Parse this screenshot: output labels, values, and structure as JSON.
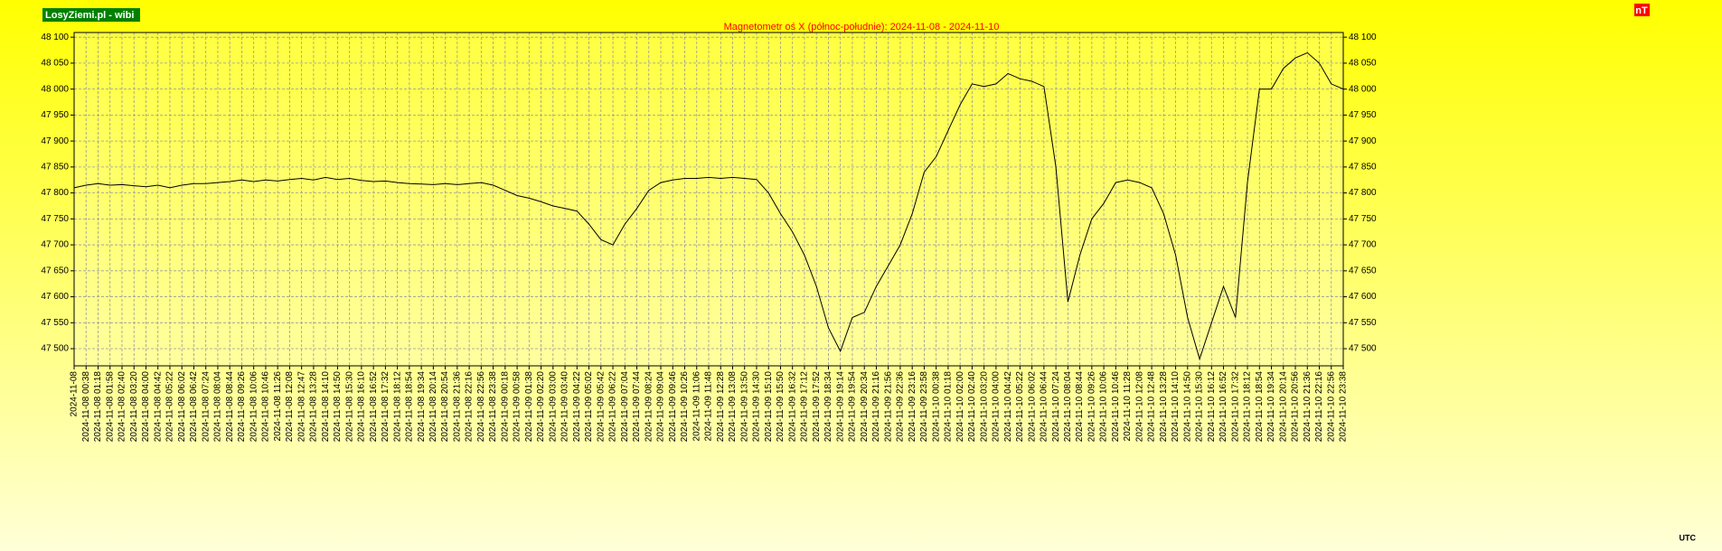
{
  "chart_data": {
    "type": "line",
    "title": "Magnetometr oś X (północ-południe): 2024-11-08 - 2024-11-10",
    "logo": "LosyZiemi.pl - wibi",
    "unit": "nT",
    "timezone": "UTC",
    "color": "#000000",
    "grid": true,
    "ylim": [
      47467,
      48109
    ],
    "yticks": [
      {
        "value": 47500,
        "label": "47 500"
      },
      {
        "value": 47550,
        "label": "47 550"
      },
      {
        "value": 47600,
        "label": "47 600"
      },
      {
        "value": 47650,
        "label": "47 650"
      },
      {
        "value": 47700,
        "label": "47 700"
      },
      {
        "value": 47750,
        "label": "47 750"
      },
      {
        "value": 47800,
        "label": "47 800"
      },
      {
        "value": 47850,
        "label": "47 850"
      },
      {
        "value": 47900,
        "label": "47 900"
      },
      {
        "value": 47950,
        "label": "47 950"
      },
      {
        "value": 48000,
        "label": "48 000"
      },
      {
        "value": 48050,
        "label": "48 050"
      },
      {
        "value": 48100,
        "label": "48 100"
      }
    ],
    "categories": [
      "2024-11-08",
      "2024-11-08 00:38",
      "2024-11-08 01:18",
      "2024-11-08 01:58",
      "2024-11-08 02:40",
      "2024-11-08 03:20",
      "2024-11-08 04:00",
      "2024-11-08 04:42",
      "2024-11-08 05:22",
      "2024-11-08 06:02",
      "2024-11-08 06:42",
      "2024-11-08 07:24",
      "2024-11-08 08:04",
      "2024-11-08 08:44",
      "2024-11-08 09:26",
      "2024-11-08 10:06",
      "2024-11-08 10:46",
      "2024-11-08 11:26",
      "2024-11-08 12:08",
      "2024-11-08 12:47",
      "2024-11-08 13:28",
      "2024-11-08 14:10",
      "2024-11-08 14:50",
      "2024-11-08 15:30",
      "2024-11-08 16:10",
      "2024-11-08 16:52",
      "2024-11-08 17:32",
      "2024-11-08 18:12",
      "2024-11-08 18:54",
      "2024-11-08 19:34",
      "2024-11-08 20:14",
      "2024-11-08 20:54",
      "2024-11-08 21:36",
      "2024-11-08 22:16",
      "2024-11-08 22:56",
      "2024-11-08 23:38",
      "2024-11-09 00:18",
      "2024-11-09 00:58",
      "2024-11-09 01:38",
      "2024-11-09 02:20",
      "2024-11-09 03:00",
      "2024-11-09 03:40",
      "2024-11-09 04:22",
      "2024-11-09 05:02",
      "2024-11-09 05:42",
      "2024-11-09 06:22",
      "2024-11-09 07:04",
      "2024-11-09 07:44",
      "2024-11-09 08:24",
      "2024-11-09 09:04",
      "2024-11-09 09:46",
      "2024-11-09 10:26",
      "2024-11-09 11:06",
      "2024-11-09 11:48",
      "2024-11-09 12:28",
      "2024-11-09 13:08",
      "2024-11-09 13:50",
      "2024-11-09 14:30",
      "2024-11-09 15:10",
      "2024-11-09 15:50",
      "2024-11-09 16:32",
      "2024-11-09 17:12",
      "2024-11-09 17:52",
      "2024-11-09 18:34",
      "2024-11-09 19:14",
      "2024-11-09 19:54",
      "2024-11-09 20:34",
      "2024-11-09 21:16",
      "2024-11-09 21:56",
      "2024-11-09 22:36",
      "2024-11-09 23:16",
      "2024-11-09 23:58",
      "2024-11-10 00:38",
      "2024-11-10 01:18",
      "2024-11-10 02:00",
      "2024-11-10 02:40",
      "2024-11-10 03:20",
      "2024-11-10 04:00",
      "2024-11-10 04:42",
      "2024-11-10 05:22",
      "2024-11-10 06:02",
      "2024-11-10 06:44",
      "2024-11-10 07:24",
      "2024-11-10 08:04",
      "2024-11-10 08:44",
      "2024-11-10 09:26",
      "2024-11-10 10:06",
      "2024-11-10 10:46",
      "2024-11-10 11:28",
      "2024-11-10 12:08",
      "2024-11-10 12:48",
      "2024-11-10 13:28",
      "2024-11-10 14:10",
      "2024-11-10 14:50",
      "2024-11-10 15:30",
      "2024-11-10 16:12",
      "2024-11-10 16:52",
      "2024-11-10 17:32",
      "2024-11-10 18:12",
      "2024-11-10 18:54",
      "2024-11-10 19:34",
      "2024-11-10 20:14",
      "2024-11-10 20:56",
      "2024-11-10 21:36",
      "2024-11-10 22:16",
      "2024-11-10 22:56",
      "2024-11-10 23:38"
    ],
    "values": [
      47810,
      47815,
      47818,
      47815,
      47816,
      47814,
      47812,
      47815,
      47810,
      47815,
      47818,
      47818,
      47820,
      47822,
      47825,
      47822,
      47825,
      47823,
      47826,
      47828,
      47825,
      47830,
      47826,
      47828,
      47824,
      47822,
      47823,
      47820,
      47818,
      47817,
      47816,
      47818,
      47816,
      47818,
      47820,
      47815,
      47805,
      47795,
      47790,
      47783,
      47775,
      47770,
      47765,
      47740,
      47710,
      47700,
      47740,
      47770,
      47805,
      47820,
      47825,
      47828,
      47828,
      47830,
      47828,
      47830,
      47828,
      47826,
      47800,
      47760,
      47725,
      47680,
      47620,
      47540,
      47495,
      47560,
      47570,
      47620,
      47660,
      47700,
      47760,
      47840,
      47870,
      47920,
      47970,
      48010,
      48005,
      48010,
      48030,
      48020,
      48015,
      48005,
      47850,
      47590,
      47680,
      47750,
      47780,
      47820,
      47825,
      47820,
      47810,
      47760,
      47680,
      47560,
      47480,
      47550,
      47620,
      47560,
      47820,
      48000,
      48000,
      48040,
      48060,
      48070,
      48050,
      48010,
      48000
    ]
  }
}
